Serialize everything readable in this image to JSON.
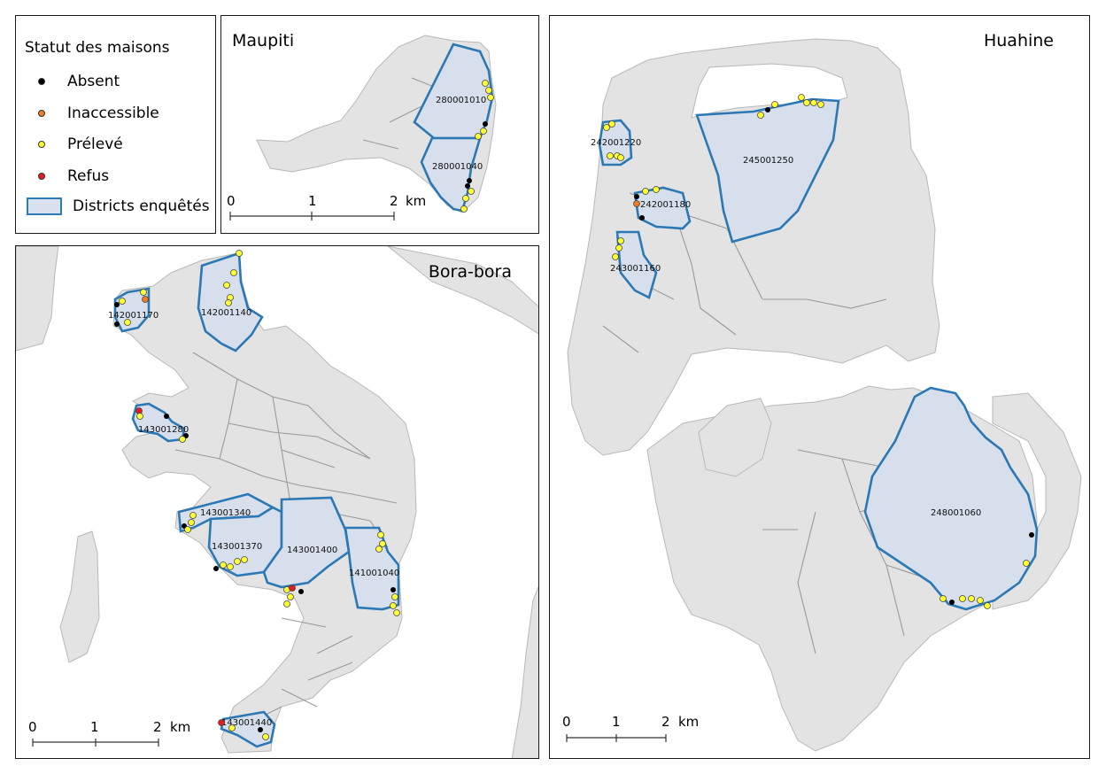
{
  "legend": {
    "title": "Statut des maisons",
    "items": [
      {
        "label": "Absent",
        "color": "#000000"
      },
      {
        "label": "Inaccessible",
        "color": "#f07a20"
      },
      {
        "label": "Prélevé",
        "color": "#ffff33"
      },
      {
        "label": "Refus",
        "color": "#e41a1c"
      },
      {
        "label": "Districts enquêtés",
        "color": "#d9e2ee",
        "stroke": "#2e7bb4"
      }
    ]
  },
  "maupiti": {
    "title": "Maupiti",
    "districts": [
      "280001010",
      "280001040"
    ],
    "scale": {
      "ticks": [
        "0",
        "1",
        "2"
      ],
      "unit": "km"
    }
  },
  "bora": {
    "title": "Bora-bora",
    "districts": [
      "142001170",
      "142001140",
      "143001280",
      "143001340",
      "143001370",
      "143001400",
      "141001040",
      "143001440"
    ],
    "scale": {
      "ticks": [
        "0",
        "1",
        "2"
      ],
      "unit": "km"
    }
  },
  "huahine": {
    "title": "Huahine",
    "districts": [
      "242001220",
      "245001250",
      "242001180",
      "243001160",
      "248001060"
    ],
    "scale": {
      "ticks": [
        "0",
        "1",
        "2"
      ],
      "unit": "km"
    }
  }
}
